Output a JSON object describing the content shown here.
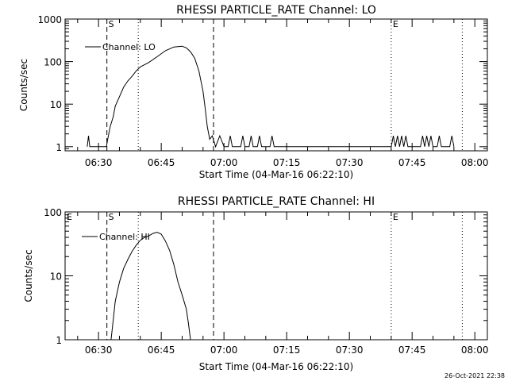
{
  "footer": {
    "timestamp": "26-Oct-2021 22:38"
  },
  "chart_data": [
    {
      "type": "line",
      "title": "RHESSI PARTICLE_RATE Channel: LO",
      "xlabel": "Start Time (04-Mar-16 06:22:10)",
      "ylabel": "Counts/sec",
      "xlim": [
        "06:22",
        "08:03"
      ],
      "ylim": [
        0.8,
        1000
      ],
      "yscale": "log",
      "xticks": [
        "06:30",
        "06:45",
        "07:00",
        "07:15",
        "07:30",
        "07:45",
        "08:00"
      ],
      "yticks": [
        "1",
        "10",
        "100",
        "1000"
      ],
      "legend": {
        "position": "top-left",
        "entries": [
          "Channel: LO"
        ]
      },
      "markers": [
        {
          "label": "S",
          "time": "06:32",
          "style": "dashed"
        },
        {
          "label": "",
          "time": "06:39.5",
          "style": "dotted"
        },
        {
          "label": "",
          "time": "06:57.5",
          "style": "dashed"
        },
        {
          "label": "E",
          "time": "07:40",
          "style": "dotted"
        },
        {
          "label": "",
          "time": "07:57",
          "style": "dotted"
        }
      ],
      "series": [
        {
          "name": "Channel: LO",
          "color": "#000000",
          "x": [
            "06:27.3",
            "06:27.6",
            "06:27.9",
            "06:31.9",
            "06:32.2",
            "06:32.8",
            "06:33.5",
            "06:34",
            "06:35",
            "06:36",
            "06:37",
            "06:38",
            "06:39",
            "06:40",
            "06:42",
            "06:44",
            "06:46",
            "06:48",
            "06:50",
            "06:51",
            "06:52",
            "06:53",
            "06:54",
            "06:55",
            "06:55.5",
            "06:56",
            "06:56.6",
            "06:57.2",
            "06:58",
            "06:59",
            "07:00",
            "07:01",
            "07:01.5",
            "07:02",
            "07:04",
            "07:04.5",
            "07:05",
            "07:06",
            "07:06.5",
            "07:07",
            "07:08",
            "07:08.5",
            "07:09",
            "07:11",
            "07:11.5",
            "07:12",
            "07:40",
            "07:40.5",
            "07:41",
            "07:41.5",
            "07:42",
            "07:42.5",
            "07:43",
            "07:43.5",
            "07:44",
            "07:47",
            "07:47.5",
            "07:48",
            "07:48.5",
            "07:49",
            "07:49.5",
            "07:50",
            "07:51",
            "07:51.5",
            "07:52",
            "07:54",
            "07:54.5",
            "07:55"
          ],
          "y": [
            1,
            1.8,
            1,
            1,
            1.5,
            3,
            5,
            9,
            15,
            25,
            35,
            45,
            60,
            75,
            95,
            130,
            180,
            220,
            230,
            210,
            170,
            120,
            60,
            20,
            8,
            3,
            1.5,
            1.8,
            1,
            1.8,
            1,
            1,
            1.8,
            1,
            1,
            1.8,
            1,
            1,
            1.8,
            1,
            1,
            1.8,
            1,
            1,
            1.8,
            1,
            1,
            1.8,
            1,
            1.8,
            1,
            1.8,
            1,
            1.8,
            1,
            1,
            1.8,
            1,
            1.8,
            1,
            1.8,
            1,
            1,
            1.8,
            1,
            1,
            1.8,
            1
          ]
        }
      ]
    },
    {
      "type": "line",
      "title": "RHESSI PARTICLE_RATE Channel: HI",
      "xlabel": "Start Time (04-Mar-16 06:22:10)",
      "ylabel": "Counts/sec",
      "xlim": [
        "06:22",
        "08:03"
      ],
      "ylim": [
        1,
        100
      ],
      "yscale": "log",
      "xticks": [
        "06:30",
        "06:45",
        "07:00",
        "07:15",
        "07:30",
        "07:45",
        "08:00"
      ],
      "yticks": [
        "1",
        "10",
        "100"
      ],
      "legend": {
        "position": "top-left",
        "entries": [
          "Channel: HI"
        ]
      },
      "markers": [
        {
          "label": "E",
          "time": "06:22",
          "style": "none"
        },
        {
          "label": "S",
          "time": "06:32",
          "style": "dashed"
        },
        {
          "label": "",
          "time": "06:39.5",
          "style": "dotted"
        },
        {
          "label": "",
          "time": "06:57.5",
          "style": "dashed"
        },
        {
          "label": "E",
          "time": "07:40",
          "style": "dotted"
        },
        {
          "label": "",
          "time": "07:57",
          "style": "dotted"
        }
      ],
      "series": [
        {
          "name": "Channel: HI",
          "color": "#000000",
          "x": [
            "06:33",
            "06:33.5",
            "06:34",
            "06:35",
            "06:36",
            "06:37",
            "06:38",
            "06:39",
            "06:40",
            "06:41",
            "06:42",
            "06:43",
            "06:44",
            "06:45",
            "06:46",
            "06:47",
            "06:48",
            "06:49",
            "06:50",
            "06:51",
            "06:51.5",
            "06:52"
          ],
          "y": [
            1,
            2,
            4,
            8,
            13,
            18,
            24,
            30,
            36,
            40,
            42,
            46,
            48,
            45,
            35,
            25,
            15,
            8,
            5,
            3,
            1.8,
            1
          ]
        }
      ]
    }
  ]
}
